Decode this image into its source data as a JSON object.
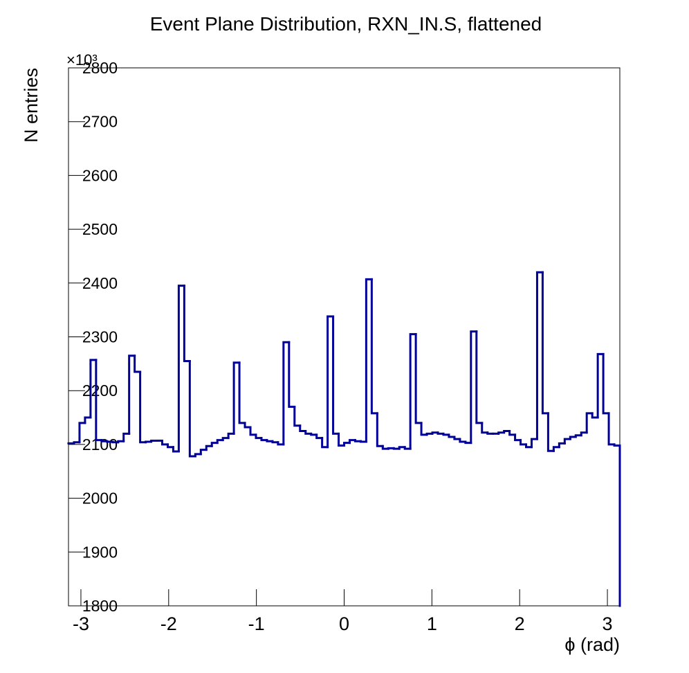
{
  "chart_data": {
    "type": "histogram",
    "title": "Event Plane Distribution, RXN_IN.S, flattened",
    "x_label": "ϕ (rad)",
    "y_label": "N entries",
    "y_multiplier": "×10³",
    "color": "#000099",
    "bins": [
      -3.1416,
      -3.0788,
      -3.0159,
      -2.9531,
      -2.8903,
      -2.8274,
      -2.7646,
      -2.7018,
      -2.6389,
      -2.5761,
      -2.5133,
      -2.4504,
      -2.3876,
      -2.3248,
      -2.2619,
      -2.1991,
      -2.1363,
      -2.0735,
      -2.0106,
      -1.9478,
      -1.885,
      -1.8221,
      -1.7593,
      -1.6965,
      -1.6336,
      -1.5708,
      -1.508,
      -1.4451,
      -1.3823,
      -1.3195,
      -1.2566,
      -1.1938,
      -1.131,
      -1.0681,
      -1.0053,
      -0.9425,
      -0.8796,
      -0.8168,
      -0.754,
      -0.6912,
      -0.6283,
      -0.5655,
      -0.5027,
      -0.4398,
      -0.377,
      -0.3142,
      -0.2513,
      -0.1885,
      -0.1257,
      -0.0628,
      0,
      0.0628,
      0.1257,
      0.1885,
      0.2513,
      0.3142,
      0.377,
      0.4398,
      0.5027,
      0.5655,
      0.6283,
      0.6912,
      0.754,
      0.8168,
      0.8796,
      0.9425,
      1.0053,
      1.0681,
      1.131,
      1.1938,
      1.2566,
      1.3195,
      1.3823,
      1.4451,
      1.508,
      1.5708,
      1.6336,
      1.6965,
      1.7593,
      1.8221,
      1.885,
      1.9478,
      2.0106,
      2.0735,
      2.1363,
      2.1991,
      2.2619,
      2.3248,
      2.3876,
      2.4504,
      2.5133,
      2.5761,
      2.6389,
      2.7018,
      2.7646,
      2.8274,
      2.8903,
      2.9531,
      3.0159,
      3.0788,
      3.1416
    ],
    "values": [
      2102,
      2104,
      2140,
      2150,
      2257,
      2108,
      2106,
      2105,
      2104,
      2106,
      2120,
      2265,
      2235,
      2104,
      2105,
      2107,
      2107,
      2100,
      2095,
      2087,
      2395,
      2255,
      2078,
      2082,
      2090,
      2097,
      2103,
      2108,
      2112,
      2120,
      2252,
      2140,
      2132,
      2118,
      2112,
      2108,
      2106,
      2104,
      2100,
      2290,
      2170,
      2135,
      2125,
      2120,
      2118,
      2112,
      2095,
      2338,
      2120,
      2098,
      2103,
      2108,
      2106,
      2105,
      2407,
      2158,
      2097,
      2092,
      2093,
      2092,
      2095,
      2092,
      2305,
      2140,
      2118,
      2120,
      2122,
      2120,
      2118,
      2114,
      2110,
      2105,
      2103,
      2310,
      2140,
      2122,
      2120,
      2120,
      2122,
      2125,
      2118,
      2108,
      2100,
      2095,
      2110,
      2420,
      2158,
      2088,
      2095,
      2102,
      2110,
      2114,
      2117,
      2122,
      2158,
      2150,
      2268,
      2158,
      2100,
      2098
    ],
    "xlim": [
      -3.1416,
      3.1416
    ],
    "xticks": [
      -3,
      -2,
      -1,
      0,
      1,
      2,
      3
    ],
    "ylim": [
      1800,
      2800
    ],
    "yticks": [
      1800,
      1900,
      2000,
      2100,
      2200,
      2300,
      2400,
      2500,
      2600,
      2700,
      2800
    ]
  }
}
